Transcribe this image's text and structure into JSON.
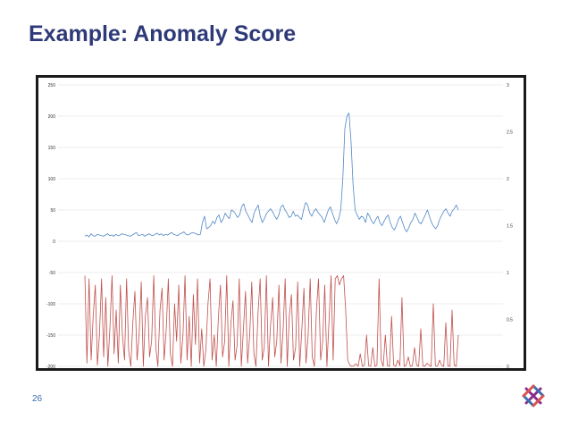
{
  "slide": {
    "title": "Example: Anomaly Score",
    "page_number": "26",
    "logo_icon": "lattice-logo-icon"
  },
  "colors": {
    "title": "#2e3a78",
    "series_top": "#4f86c6",
    "series_bottom": "#c0504d",
    "grid": "#d9d9d9"
  },
  "chart_data": {
    "type": "line",
    "title": "",
    "grid": true,
    "y_left": {
      "ticks": [
        250,
        200,
        150,
        100,
        50,
        0,
        -50,
        -100,
        -150,
        -200
      ],
      "ylim": [
        -200,
        250
      ]
    },
    "y_right": {
      "ticks": [
        "3",
        "2.5",
        "2",
        "1.5",
        "1",
        "0.5",
        "0"
      ],
      "ylim": [
        0,
        3
      ]
    },
    "series": [
      {
        "axis": "left",
        "values": [
          8,
          10,
          7,
          12,
          9,
          8,
          11,
          10,
          9,
          8,
          10,
          12,
          9,
          10,
          8,
          11,
          9,
          10,
          12,
          11,
          10,
          9,
          8,
          10,
          12,
          14,
          9,
          10,
          11,
          8,
          10,
          12,
          10,
          9,
          11,
          13,
          10,
          12,
          9,
          11,
          10,
          12,
          14,
          11,
          10,
          9,
          12,
          13,
          15,
          11,
          10,
          12,
          14,
          13,
          12,
          10,
          11,
          30,
          40,
          20,
          22,
          25,
          32,
          28,
          38,
          42,
          30,
          35,
          45,
          40,
          36,
          50,
          48,
          44,
          38,
          42,
          55,
          60,
          48,
          42,
          35,
          30,
          45,
          52,
          58,
          40,
          30,
          36,
          44,
          48,
          52,
          47,
          40,
          35,
          42,
          55,
          58,
          50,
          45,
          38,
          40,
          48,
          40,
          42,
          38,
          35,
          50,
          62,
          58,
          45,
          40,
          48,
          52,
          46,
          42,
          38,
          30,
          40,
          50,
          55,
          45,
          35,
          28,
          36,
          50,
          100,
          180,
          200,
          205,
          160,
          90,
          50,
          42,
          35,
          40,
          38,
          30,
          45,
          40,
          32,
          28,
          35,
          40,
          30,
          25,
          32,
          38,
          42,
          30,
          22,
          18,
          25,
          35,
          40,
          30,
          20,
          15,
          22,
          30,
          35,
          45,
          38,
          30,
          28,
          35,
          42,
          50,
          40,
          30,
          24,
          20,
          25,
          35,
          42,
          48,
          52,
          45,
          40,
          48,
          52,
          58,
          50
        ]
      },
      {
        "axis": "left",
        "values": [
          -55,
          -195,
          -60,
          -190,
          -120,
          -70,
          -198,
          -150,
          -60,
          -185,
          -90,
          -200,
          -140,
          -55,
          -180,
          -110,
          -195,
          -70,
          -150,
          -190,
          -60,
          -175,
          -200,
          -130,
          -80,
          -190,
          -150,
          -65,
          -200,
          -120,
          -90,
          -185,
          -160,
          -55,
          -170,
          -200,
          -110,
          -75,
          -190,
          -140,
          -60,
          -180,
          -200,
          -100,
          -160,
          -70,
          -195,
          -150,
          -55,
          -190,
          -120,
          -200,
          -85,
          -165,
          -60,
          -195,
          -140,
          -200,
          -175,
          -100,
          -60,
          -190,
          -150,
          -200,
          -120,
          -70,
          -185,
          -160,
          -55,
          -200,
          -130,
          -95,
          -190,
          -165,
          -60,
          -200,
          -140,
          -80,
          -195,
          -150,
          -65,
          -180,
          -200,
          -115,
          -60,
          -190,
          -170,
          -55,
          -200,
          -135,
          -90,
          -185,
          -160,
          -70,
          -195,
          -145,
          -60,
          -200,
          -120,
          -85,
          -190,
          -170,
          -65,
          -200,
          -140,
          -75,
          -195,
          -150,
          -60,
          -185,
          -200,
          -110,
          -60,
          -190,
          -160,
          -70,
          -200,
          -130,
          -55,
          -190,
          -60,
          -55,
          -70,
          -60,
          -55,
          -110,
          -190,
          -198,
          -200,
          -199,
          -196,
          -200,
          -180,
          -200,
          -198,
          -150,
          -199,
          -200,
          -170,
          -200,
          -198,
          -60,
          -190,
          -200,
          -150,
          -199,
          -200,
          -120,
          -198,
          -200,
          -190,
          -199,
          -90,
          -200,
          -198,
          -185,
          -200,
          -199,
          -170,
          -198,
          -200,
          -140,
          -199,
          -200,
          -195,
          -198,
          -200,
          -100,
          -199,
          -200,
          -190,
          -198,
          -200,
          -130,
          -199,
          -200,
          -110,
          -198,
          -200,
          -150
        ]
      }
    ]
  }
}
